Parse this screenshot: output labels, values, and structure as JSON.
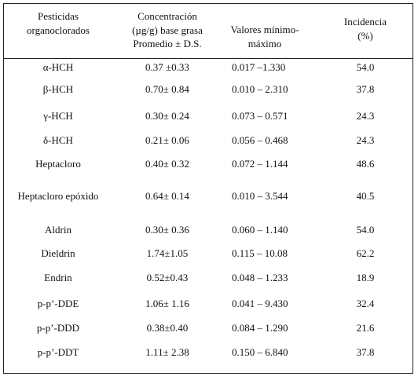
{
  "header": {
    "col1_line1": "Pesticidas",
    "col1_line2": "organoclorados",
    "col2_line1": "Concentración",
    "col2_line2": "(µg/g) base grasa",
    "col2_line3": "Promedio ± D.S.",
    "col3_line1": "Valores  mínimo-",
    "col3_line2": "máximo",
    "col4_line1": "Incidencia",
    "col4_line2": "(%)"
  },
  "rows": [
    {
      "pesticida": "α-HCH",
      "concentracion": "0.37 ±0.33",
      "rango": "0.017 –1.330",
      "incidencia": "54.0"
    },
    {
      "pesticida": "β-HCH",
      "concentracion": "0.70± 0.84",
      "rango": "0.010 –  2.310",
      "incidencia": "37.8"
    },
    {
      "pesticida": "γ-HCH",
      "concentracion": "0.30± 0.24",
      "rango": "0.073 – 0.571",
      "incidencia": "24.3"
    },
    {
      "pesticida": "δ-HCH",
      "concentracion": "0.21± 0.06",
      "rango": "0.056 – 0.468",
      "incidencia": "24.3"
    },
    {
      "pesticida": "Heptacloro",
      "concentracion": "0.40± 0.32",
      "rango": "0.072 – 1.144",
      "incidencia": "48.6"
    },
    {
      "pesticida": "Heptacloro epóxido",
      "concentracion": "0.64± 0.14",
      "rango": "0.010 – 3.544",
      "incidencia": "40.5"
    },
    {
      "pesticida": "Aldrin",
      "concentracion": "0.30± 0.36",
      "rango": "0.060 – 1.140",
      "incidencia": "54.0"
    },
    {
      "pesticida": "Dieldrin",
      "concentracion": "1.74±1.05",
      "rango": "0.115 – 10.08",
      "incidencia": "62.2"
    },
    {
      "pesticida": "Endrin",
      "concentracion": "0.52±0.43",
      "rango": "0.048 – 1.233",
      "incidencia": "18.9"
    },
    {
      "pesticida": "p-p’-DDE",
      "concentracion": "1.06± 1.16",
      "rango": "0.041 – 9.430",
      "incidencia": "32.4"
    },
    {
      "pesticida": "p-p’-DDD",
      "concentracion": "0.38±0.40",
      "rango": "0.084 – 1.290",
      "incidencia": "21.6"
    },
    {
      "pesticida": "p-p’-DDT",
      "concentracion": "1.11± 2.38",
      "rango": "0.150 – 6.840",
      "incidencia": "37.8"
    }
  ]
}
